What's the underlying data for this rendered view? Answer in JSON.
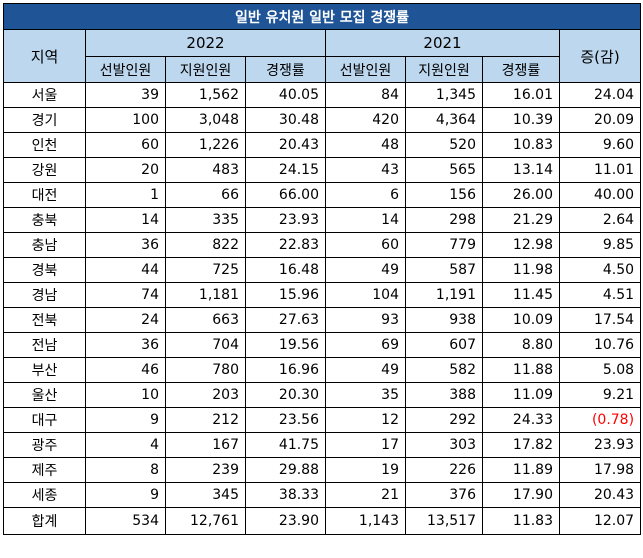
{
  "title": "일반 유치원 일반 모집 경쟁률",
  "headers": {
    "region": "지역",
    "year_2022": "2022",
    "year_2021": "2021",
    "change": "증(감)",
    "selected": "선발인원",
    "applicants": "지원인원",
    "ratio": "경쟁률"
  },
  "rows": [
    {
      "region": "서울",
      "s22": "39",
      "a22": "1,562",
      "r22": "40.05",
      "s21": "84",
      "a21": "1,345",
      "r21": "16.01",
      "chg": "24.04"
    },
    {
      "region": "경기",
      "s22": "100",
      "a22": "3,048",
      "r22": "30.48",
      "s21": "420",
      "a21": "4,364",
      "r21": "10.39",
      "chg": "20.09"
    },
    {
      "region": "인천",
      "s22": "60",
      "a22": "1,226",
      "r22": "20.43",
      "s21": "48",
      "a21": "520",
      "r21": "10.83",
      "chg": "9.60"
    },
    {
      "region": "강원",
      "s22": "20",
      "a22": "483",
      "r22": "24.15",
      "s21": "43",
      "a21": "565",
      "r21": "13.14",
      "chg": "11.01"
    },
    {
      "region": "대전",
      "s22": "1",
      "a22": "66",
      "r22": "66.00",
      "s21": "6",
      "a21": "156",
      "r21": "26.00",
      "chg": "40.00"
    },
    {
      "region": "충북",
      "s22": "14",
      "a22": "335",
      "r22": "23.93",
      "s21": "14",
      "a21": "298",
      "r21": "21.29",
      "chg": "2.64"
    },
    {
      "region": "충남",
      "s22": "36",
      "a22": "822",
      "r22": "22.83",
      "s21": "60",
      "a21": "779",
      "r21": "12.98",
      "chg": "9.85"
    },
    {
      "region": "경북",
      "s22": "44",
      "a22": "725",
      "r22": "16.48",
      "s21": "49",
      "a21": "587",
      "r21": "11.98",
      "chg": "4.50"
    },
    {
      "region": "경남",
      "s22": "74",
      "a22": "1,181",
      "r22": "15.96",
      "s21": "104",
      "a21": "1,191",
      "r21": "11.45",
      "chg": "4.51"
    },
    {
      "region": "전북",
      "s22": "24",
      "a22": "663",
      "r22": "27.63",
      "s21": "93",
      "a21": "938",
      "r21": "10.09",
      "chg": "17.54"
    },
    {
      "region": "전남",
      "s22": "36",
      "a22": "704",
      "r22": "19.56",
      "s21": "69",
      "a21": "607",
      "r21": "8.80",
      "chg": "10.76"
    },
    {
      "region": "부산",
      "s22": "46",
      "a22": "780",
      "r22": "16.96",
      "s21": "49",
      "a21": "582",
      "r21": "11.88",
      "chg": "5.08"
    },
    {
      "region": "울산",
      "s22": "10",
      "a22": "203",
      "r22": "20.30",
      "s21": "35",
      "a21": "388",
      "r21": "11.09",
      "chg": "9.21"
    },
    {
      "region": "대구",
      "s22": "9",
      "a22": "212",
      "r22": "23.56",
      "s21": "12",
      "a21": "292",
      "r21": "24.33",
      "chg": "(0.78)",
      "negative": true
    },
    {
      "region": "광주",
      "s22": "4",
      "a22": "167",
      "r22": "41.75",
      "s21": "17",
      "a21": "303",
      "r21": "17.82",
      "chg": "23.93"
    },
    {
      "region": "제주",
      "s22": "8",
      "a22": "239",
      "r22": "29.88",
      "s21": "19",
      "a21": "226",
      "r21": "11.89",
      "chg": "17.98"
    },
    {
      "region": "세종",
      "s22": "9",
      "a22": "345",
      "r22": "38.33",
      "s21": "21",
      "a21": "376",
      "r21": "17.90",
      "chg": "20.43"
    }
  ],
  "total": {
    "region": "합계",
    "s22": "534",
    "a22": "12,761",
    "r22": "23.90",
    "s21": "1,143",
    "a21": "13,517",
    "r21": "11.83",
    "chg": "12.07"
  },
  "colors": {
    "title_bg": "#1f5597",
    "header_bg": "#bdd7ee",
    "negative": "#ff0000"
  }
}
